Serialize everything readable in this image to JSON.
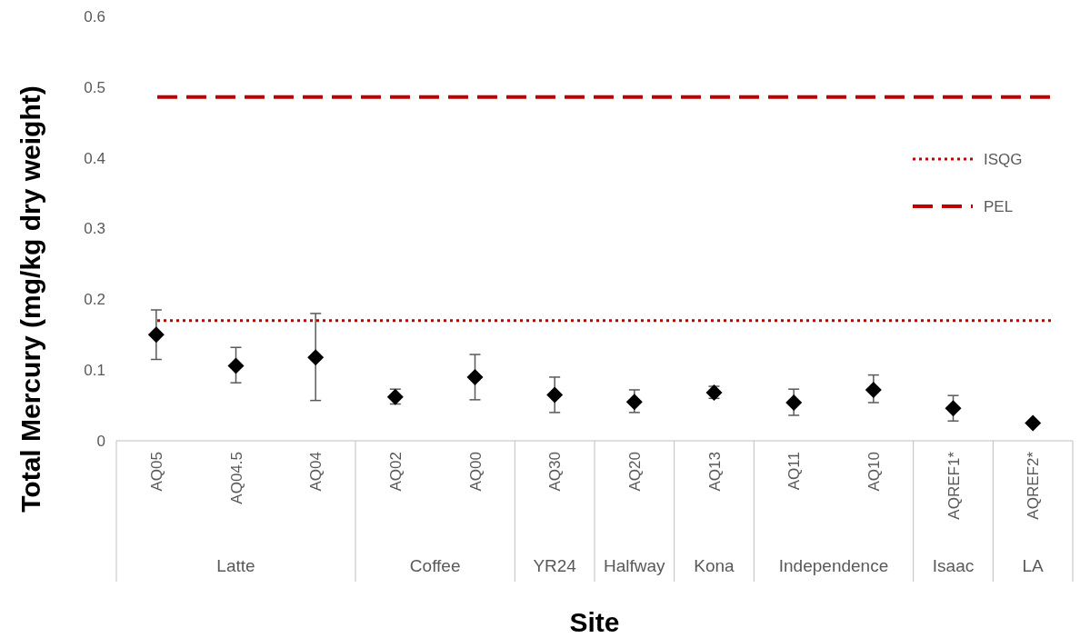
{
  "chart_data": {
    "type": "scatter",
    "xlabel": "Site",
    "ylabel": "Total Mercury (mg/kg dry weight)",
    "categories": [
      "AQ05",
      "AQ04.5",
      "AQ04",
      "AQ02",
      "AQ00",
      "AQ30",
      "AQ20",
      "AQ13",
      "AQ11",
      "AQ10",
      "AQREF1*",
      "AQREF2*"
    ],
    "series": [
      {
        "color": "#000000",
        "values": [
          0.15,
          0.106,
          0.118,
          0.062,
          0.09,
          0.065,
          0.055,
          0.068,
          0.054,
          0.072,
          0.046,
          0.025
        ],
        "errors": [
          [
            0.115,
            0.185
          ],
          [
            0.082,
            0.132
          ],
          [
            0.057,
            0.18
          ],
          [
            0.052,
            0.073
          ],
          [
            0.058,
            0.122
          ],
          [
            0.04,
            0.09
          ],
          [
            0.04,
            0.072
          ],
          [
            0.06,
            0.077
          ],
          [
            0.036,
            0.073
          ],
          [
            0.054,
            0.093
          ],
          [
            0.028,
            0.064
          ],
          null
        ]
      }
    ],
    "annotations": [
      "Latte",
      "Coffee",
      "YR24",
      "Halfway",
      "Kona",
      "Independence",
      "Isaac",
      "LA"
    ],
    "ref_lines": [
      {
        "axis": "y",
        "value": 0.17,
        "label": "ISQG",
        "color": "#c00000",
        "line_style": "dotted"
      },
      {
        "axis": "y",
        "value": 0.486,
        "label": "PEL",
        "color": "#c00000",
        "line_style": "dashed"
      }
    ],
    "ylim": [
      0,
      0.6
    ],
    "yticks": [
      {
        "value": 0,
        "label": "0"
      },
      0.1,
      0.2,
      0.3,
      0.4,
      0.5,
      0.6
    ],
    "marker": "diamond",
    "legend": "top right",
    "grid": false
  }
}
